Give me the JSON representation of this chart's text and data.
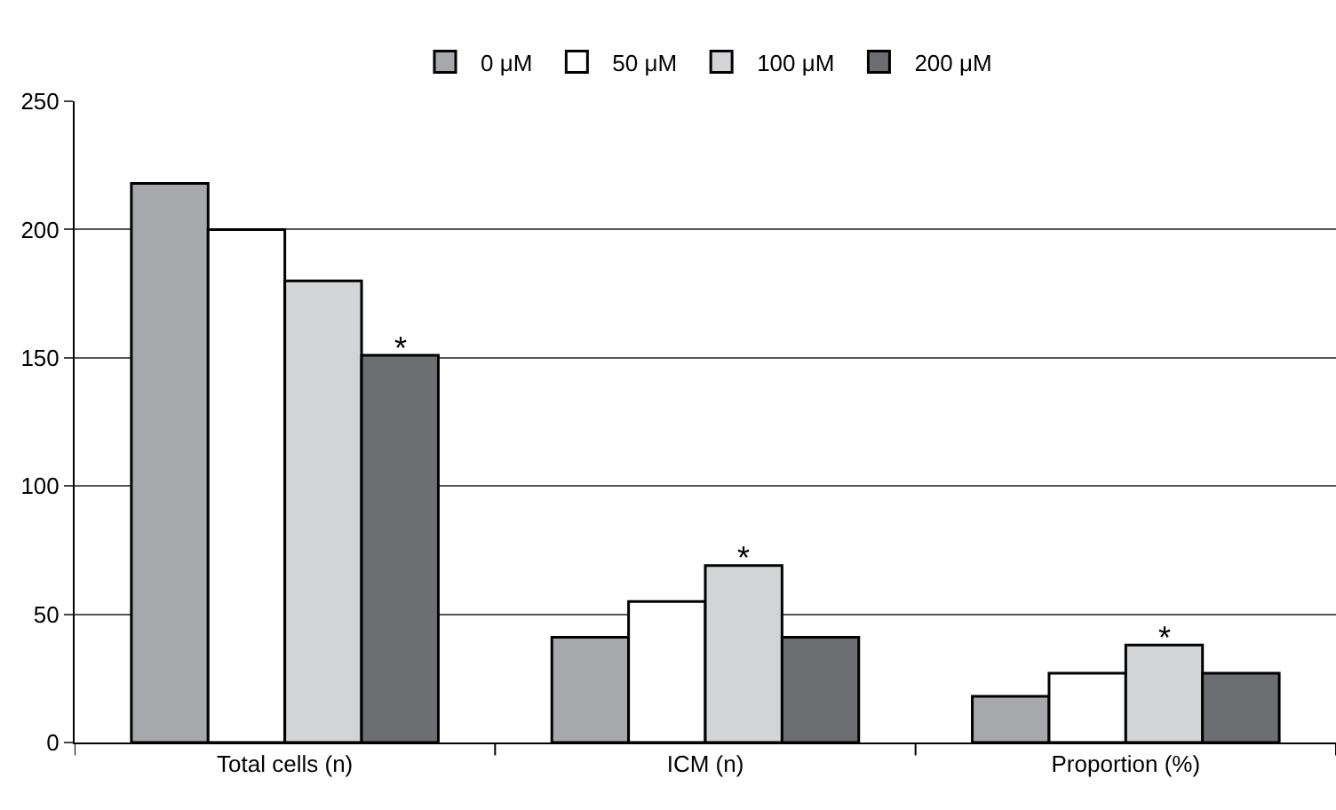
{
  "chart_data": {
    "type": "bar",
    "categories": [
      "Total cells (n)",
      "ICM (n)",
      "Proportion (%)"
    ],
    "series": [
      {
        "name": "0 μM",
        "color": "#a7a8ab",
        "values": [
          218,
          41,
          18
        ]
      },
      {
        "name": "50 μM",
        "color": "#ffffff",
        "values": [
          200,
          55,
          27
        ]
      },
      {
        "name": "100 μM",
        "color": "#d3d4d6",
        "values": [
          180,
          69,
          38
        ]
      },
      {
        "name": "200 μM",
        "color": "#6d6e72",
        "values": [
          151,
          41,
          27
        ]
      }
    ],
    "ylim": [
      0,
      250
    ],
    "yticks": [
      0,
      50,
      100,
      150,
      200,
      250
    ],
    "grid": "y",
    "legend": "top",
    "annotations": [
      {
        "text": "*",
        "y": 151
      },
      {
        "text": "*",
        "y": 69
      },
      {
        "text": "*",
        "y": 38
      }
    ]
  }
}
